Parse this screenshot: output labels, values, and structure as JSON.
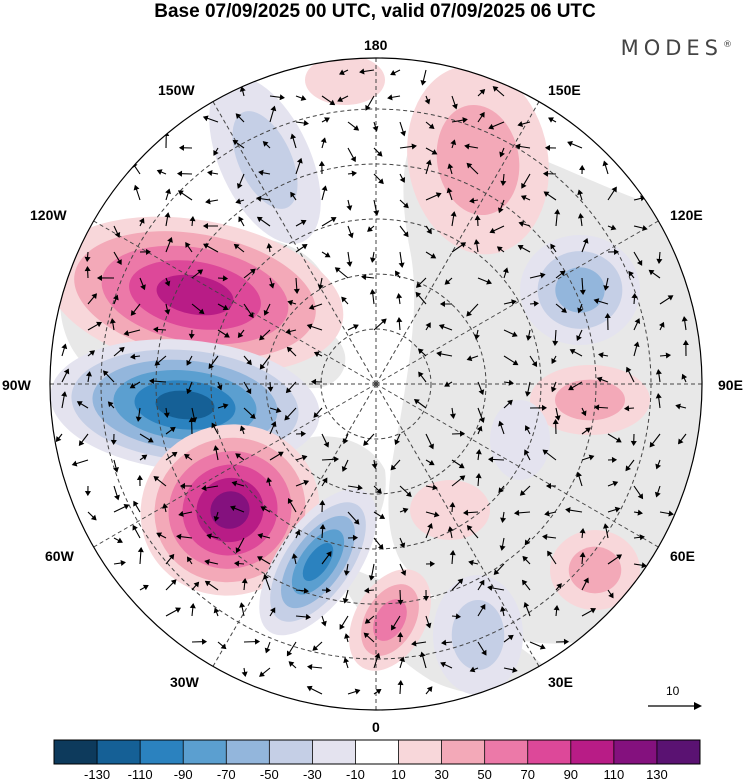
{
  "title": "Base 07/09/2025 00 UTC, valid 07/09/2025 06 UTC",
  "brand": "MODES",
  "brand_mark": "®",
  "longitude_labels": {
    "lon_180": "180",
    "lon_150e": "150E",
    "lon_120e": "120E",
    "lon_90e": "90E",
    "lon_60e": "60E",
    "lon_30e": "30E",
    "lon_0": "0",
    "lon_30w": "30W",
    "lon_60w": "60W",
    "lon_90w": "90W",
    "lon_120w": "120W",
    "lon_150w": "150W"
  },
  "vector_reference": "10",
  "colorbar": {
    "colors": [
      "#0d3a5c",
      "#156096",
      "#2b82bf",
      "#5b9fd0",
      "#93b6dc",
      "#c5cfe6",
      "#e4e3ef",
      "#ffffff",
      "#f8d7da",
      "#f3a9b8",
      "#ec79a8",
      "#dd4899",
      "#b81c86",
      "#84117e",
      "#5a1272"
    ],
    "labels": [
      "-130",
      "-110",
      "-90",
      "-70",
      "-50",
      "-30",
      "-10",
      "10",
      "30",
      "50",
      "70",
      "90",
      "110",
      "130"
    ]
  },
  "palette": {
    "land": "#e8e8e8",
    "grid": "#444444",
    "coast": "#555555"
  }
}
